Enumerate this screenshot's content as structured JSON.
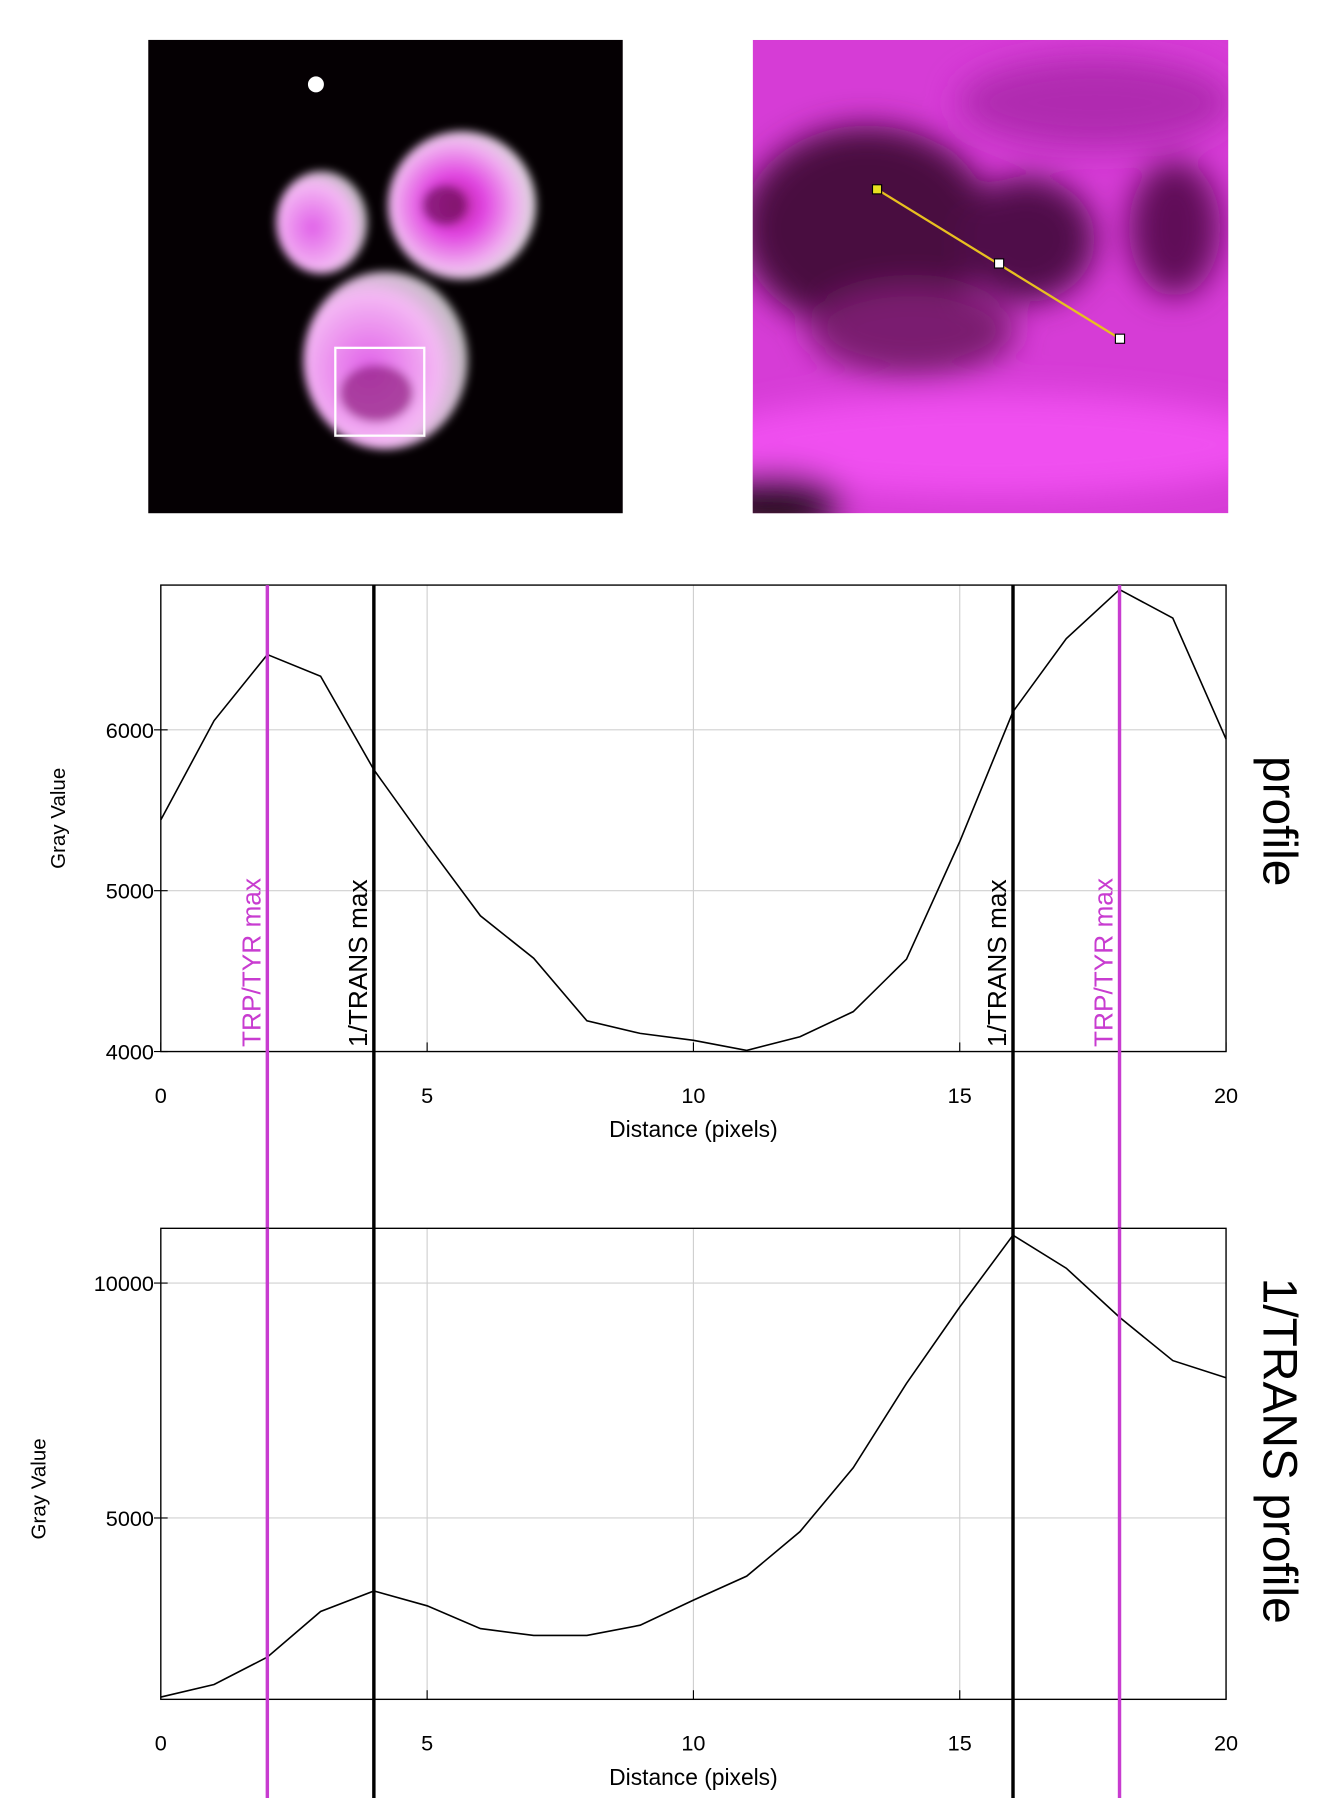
{
  "chart_data": [
    {
      "type": "line",
      "y_label": "Gray Value",
      "x_label": "Distance (pixels)",
      "annotation": "profile",
      "x": [
        0,
        1,
        2,
        3,
        4,
        5,
        6,
        7,
        8,
        9,
        10,
        11,
        12,
        13,
        14,
        15,
        16,
        17,
        18,
        19,
        20
      ],
      "series": [
        {
          "color": "#000000",
          "values": [
            5440,
            6057,
            6468,
            6333,
            5752,
            5290,
            4844,
            4580,
            4191,
            4113,
            4070,
            4007,
            4092,
            4248,
            4574,
            5305,
            6113,
            6567,
            6872,
            6695,
            5943
          ]
        }
      ],
      "xlim": [
        0,
        20
      ],
      "xticks": [
        0,
        5,
        10,
        15,
        20
      ],
      "ylim": [
        4000,
        6900
      ],
      "yticks": [
        4000,
        5000,
        6000
      ],
      "grid": true,
      "markers": [
        {
          "x": 2,
          "color": "#c83cd0",
          "label": "TRP/TYR max"
        },
        {
          "x": 4,
          "color": "#000000",
          "label": "1/TRANS max"
        },
        {
          "x": 16,
          "color": "#000000",
          "label": "1/TRANS max"
        },
        {
          "x": 18,
          "color": "#c83cd0",
          "label": "TRP/TYR max"
        }
      ]
    },
    {
      "type": "line",
      "y_label": "Gray Value",
      "x_label": "Distance (pixels)",
      "annotation": "1/TRANS profile",
      "x": [
        0,
        1,
        2,
        3,
        4,
        5,
        6,
        7,
        8,
        9,
        10,
        11,
        12,
        13,
        14,
        15,
        16,
        17,
        18,
        19,
        20
      ],
      "series": [
        {
          "color": "#000000",
          "values": [
            1189,
            1456,
            2039,
            3010,
            3447,
            3131,
            2646,
            2500,
            2500,
            2718,
            3252,
            3762,
            4709,
            6068,
            7864,
            9490,
            11019,
            10316,
            9272,
            8350,
            7985
          ]
        }
      ],
      "xlim": [
        0,
        20
      ],
      "xticks": [
        0,
        5,
        10,
        15,
        20
      ],
      "ylim": [
        1140,
        11165
      ],
      "yticks": [
        5000,
        10000
      ],
      "grid": true,
      "markers": [
        {
          "x": 2,
          "color": "#c83cd0"
        },
        {
          "x": 4,
          "color": "#000000"
        },
        {
          "x": 16,
          "color": "#000000"
        },
        {
          "x": 18,
          "color": "#c83cd0"
        }
      ]
    }
  ]
}
